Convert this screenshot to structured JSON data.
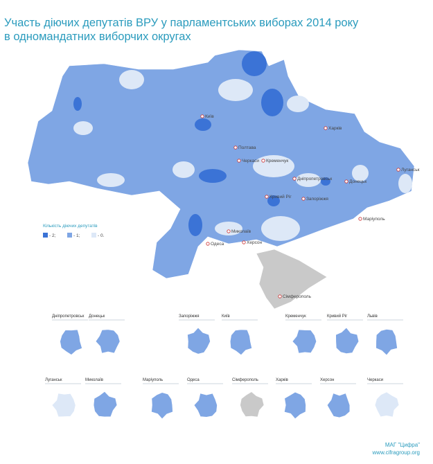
{
  "header": {
    "title_lines": [
      "Участь діючих депутатів ВРУ у парламентських виборах 2014 року",
      "в одномандатних виборчих округах"
    ]
  },
  "legend": {
    "title": "Кількість  діючих депутатів",
    "items": [
      "- 2;",
      "- 1;",
      "- 0."
    ]
  },
  "map": {
    "cities": [
      "Київ",
      "Харків",
      "Полтава",
      "Кременчук",
      "Дніпропетровськ",
      "Кривий Ріг",
      "Запоріжжя",
      "Донецьк",
      "Луганськ",
      "Маріуполь",
      "Миколаїв",
      "Херсон",
      "Одеса",
      "Сімферополь",
      "Черкаси"
    ]
  },
  "insets": [
    "Дніпропетровськ",
    "Донецьк",
    "Запоріжжя",
    "Київ",
    "Кременчук",
    "Кривий Ріг",
    "Львів",
    "Луганськ",
    "Миколаїв",
    "Маріуполь",
    "Одеса",
    "Сімферополь",
    "Харків",
    "Херсон",
    "Черкаси"
  ],
  "footer": [
    "МАГ \"Цифра\"",
    "www.cifragroup.org"
  ]
}
